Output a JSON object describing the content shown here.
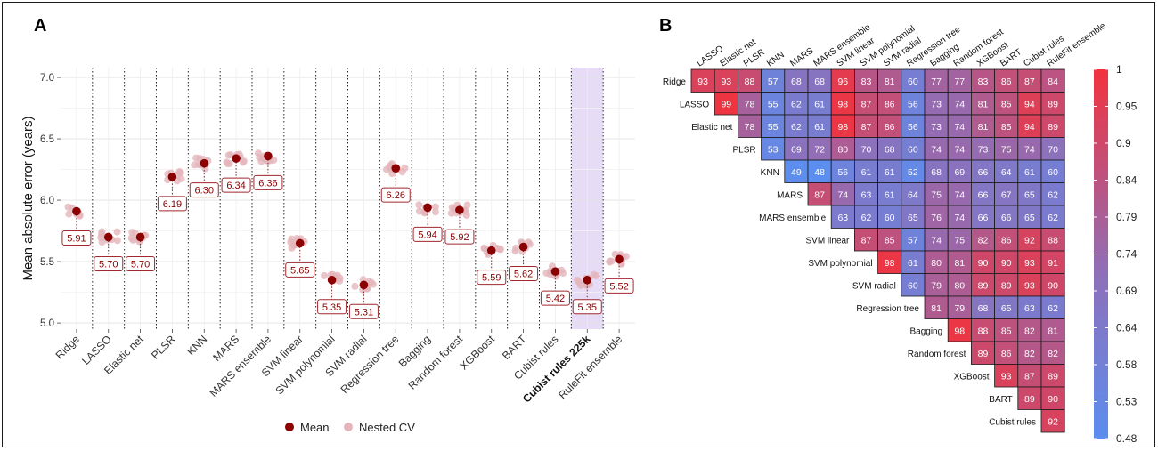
{
  "panels": {
    "a_label": "A",
    "b_label": "B"
  },
  "chart_data": [
    {
      "type": "scatter",
      "panel": "A",
      "ylabel": "Mean absolute error (years)",
      "ylim": [
        4.95,
        7.08
      ],
      "yticks": [
        "5.0",
        "5.5",
        "6.0",
        "6.5",
        "7.0"
      ],
      "ytick_values": [
        5.0,
        5.5,
        6.0,
        6.5,
        7.0
      ],
      "grid": true,
      "categories": [
        "Ridge",
        "LASSO",
        "Elastic net",
        "PLSR",
        "KNN",
        "MARS",
        "MARS ensemble",
        "SVM linear",
        "SVM polynomial",
        "SVM radial",
        "Regression tree",
        "Bagging",
        "Random forest",
        "XGBoost",
        "BART",
        "Cubist rules",
        "Cubist rules 225k",
        "RuleFit ensemble"
      ],
      "highlighted_category": "Cubist rules 225k",
      "mean_values": [
        5.91,
        5.7,
        5.7,
        6.19,
        6.3,
        6.34,
        6.36,
        5.65,
        5.35,
        5.31,
        6.26,
        5.94,
        5.92,
        5.59,
        5.62,
        5.42,
        5.35,
        5.52
      ],
      "mean_labels": [
        "5.91",
        "5.70",
        "5.70",
        "6.19",
        "6.30",
        "6.34",
        "6.36",
        "5.65",
        "5.35",
        "5.31",
        "6.26",
        "5.94",
        "5.92",
        "5.59",
        "5.62",
        "5.42",
        "5.35",
        "5.52"
      ],
      "legend": {
        "placement": "bottom",
        "items": [
          {
            "name": "Mean",
            "color": "#8b0000"
          },
          {
            "name": "Nested CV",
            "color": "#e4b5ba"
          }
        ]
      },
      "colors": {
        "mean": "#8b0000",
        "nested": "#e4b5ba",
        "highlight": "#e6dcf5",
        "label_border": "#a0282e",
        "label_text": "#8b0000"
      }
    },
    {
      "type": "heatmap",
      "panel": "B",
      "rows": [
        "Ridge",
        "LASSO",
        "Elastic net",
        "PLSR",
        "KNN",
        "MARS",
        "MARS ensemble",
        "SVM linear",
        "SVM polynomial",
        "SVM radial",
        "Regression tree",
        "Bagging",
        "Random forest",
        "XGBoost",
        "BART",
        "Cubist rules"
      ],
      "cols": [
        "LASSO",
        "Elastic net",
        "PLSR",
        "KNN",
        "MARS",
        "MARS ensemble",
        "SVM linear",
        "SVM polynomial",
        "SVM radial",
        "Regression tree",
        "Bagging",
        "Random forest",
        "XGBoost",
        "BART",
        "Cubist rules",
        "RuleFit ensemble"
      ],
      "values": [
        [
          93,
          93,
          88,
          57,
          68,
          68,
          96,
          83,
          81,
          60,
          77,
          77,
          83,
          86,
          87,
          84
        ],
        [
          99,
          78,
          55,
          62,
          61,
          98,
          87,
          86,
          56,
          73,
          74,
          81,
          85,
          94,
          89
        ],
        [
          78,
          55,
          62,
          61,
          98,
          87,
          86,
          56,
          73,
          74,
          81,
          85,
          94,
          89
        ],
        [
          53,
          69,
          72,
          80,
          70,
          68,
          60,
          74,
          74,
          73,
          75,
          74,
          70
        ],
        [
          49,
          48,
          56,
          61,
          61,
          52,
          68,
          69,
          66,
          64,
          61,
          60
        ],
        [
          87,
          74,
          63,
          61,
          64,
          75,
          74,
          66,
          67,
          65,
          62
        ],
        [
          63,
          62,
          60,
          65,
          76,
          74,
          66,
          66,
          65,
          62
        ],
        [
          87,
          85,
          57,
          74,
          75,
          82,
          86,
          92,
          88
        ],
        [
          98,
          61,
          80,
          81,
          90,
          90,
          93,
          91
        ],
        [
          60,
          79,
          80,
          89,
          89,
          93,
          90
        ],
        [
          81,
          79,
          68,
          65,
          63,
          62
        ],
        [
          98,
          88,
          85,
          82,
          81
        ],
        [
          89,
          86,
          82,
          82
        ],
        [
          93,
          87,
          89
        ],
        [
          89,
          90
        ],
        [
          92
        ]
      ],
      "colorbar": {
        "ticks": [
          "1",
          "0.95",
          "0.9",
          "0.84",
          "0.79",
          "0.74",
          "0.69",
          "0.64",
          "0.58",
          "0.53",
          "0.48"
        ],
        "min": 0.48,
        "max": 1
      },
      "colors": {
        "low": "#5b8def",
        "mid": "#8f6fb8",
        "high": "#f2323d"
      }
    }
  ]
}
